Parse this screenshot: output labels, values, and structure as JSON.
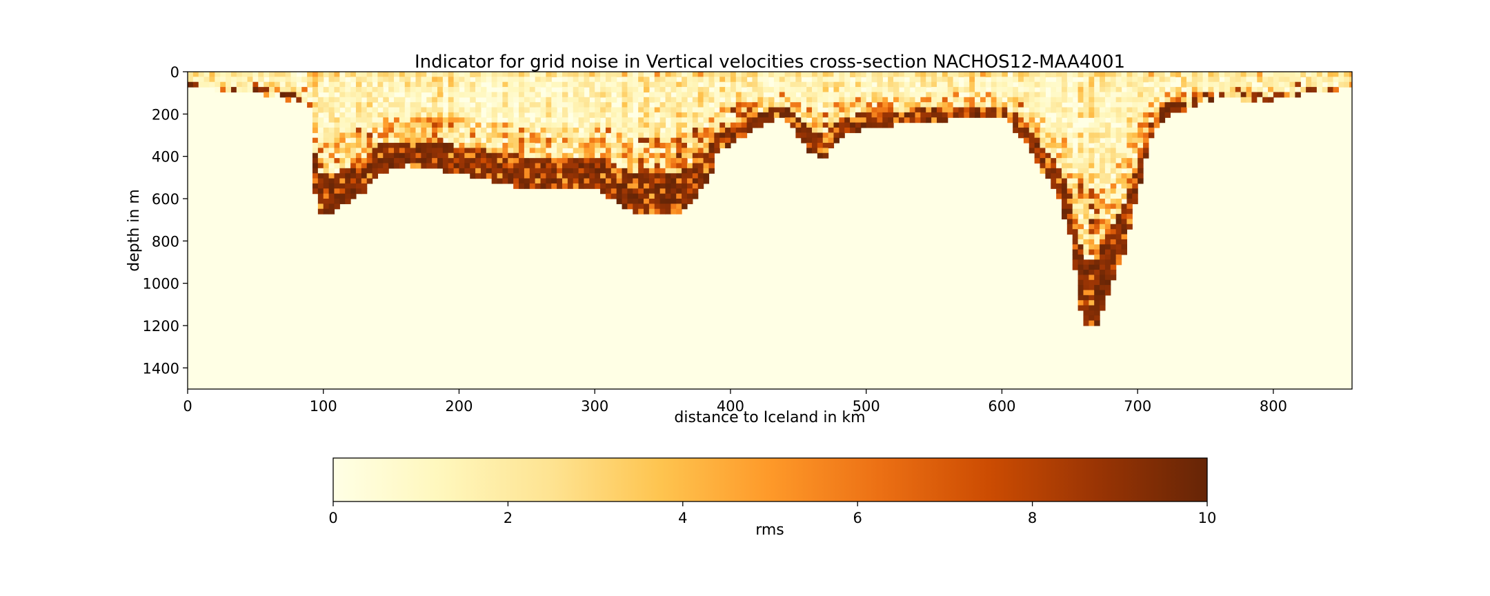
{
  "chart_data": {
    "type": "heatmap",
    "title": "Indicator for grid noise in Vertical velocities cross-section NACHOS12-MAA4001",
    "xlabel": "distance to Iceland in km",
    "ylabel": "depth in m",
    "xlim": [
      0,
      858
    ],
    "ylim": [
      1500,
      0
    ],
    "y_inverted": true,
    "x_ticks": [
      0,
      100,
      200,
      300,
      400,
      500,
      600,
      700,
      800
    ],
    "y_ticks": [
      0,
      200,
      400,
      600,
      800,
      1000,
      1200,
      1400
    ],
    "colormap": "YlOrBr",
    "colormap_stops": [
      "#ffffe5",
      "#fff7bc",
      "#fee391",
      "#fec44f",
      "#fe9929",
      "#ec7014",
      "#cc4c02",
      "#993404",
      "#662506"
    ],
    "background_color": "#ffffe5",
    "colorbar": {
      "label": "rms",
      "range": [
        0,
        10
      ],
      "ticks": [
        0,
        2,
        4,
        6,
        8,
        10
      ],
      "orientation": "horizontal",
      "placement": "bottom"
    },
    "grid": false,
    "depth_profile": {
      "description_values": "noise-patch lower limits along section (km, m)",
      "x_km": [
        5,
        60,
        90,
        95,
        105,
        115,
        130,
        140,
        160,
        200,
        250,
        300,
        330,
        350,
        360,
        375,
        385,
        390,
        400,
        420,
        440,
        460,
        470,
        480,
        500,
        520,
        540,
        580,
        600,
        615,
        625,
        640,
        650,
        660,
        670,
        680,
        690,
        700,
        710,
        720,
        760,
        790,
        820,
        858
      ],
      "depth_m": [
        60,
        100,
        150,
        660,
        660,
        620,
        560,
        470,
        430,
        470,
        540,
        540,
        660,
        660,
        660,
        580,
        480,
        380,
        330,
        250,
        200,
        380,
        390,
        300,
        250,
        240,
        230,
        200,
        200,
        300,
        420,
        560,
        760,
        1200,
        1200,
        1000,
        850,
        560,
        300,
        200,
        110,
        130,
        100,
        60
      ]
    }
  }
}
